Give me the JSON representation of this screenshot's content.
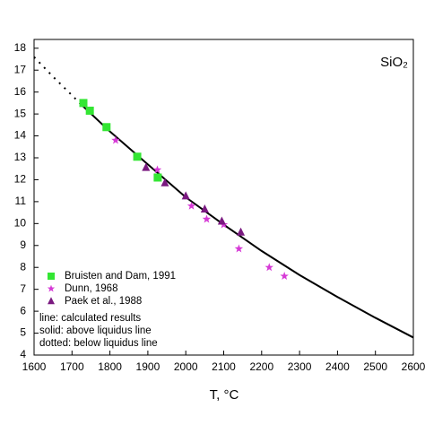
{
  "chart_data": {
    "type": "scatter",
    "x_label": "T, °C",
    "annotation_top": "SiO₂",
    "xlim": [
      1600,
      2600
    ],
    "ylim": [
      4,
      18.4
    ],
    "xticks": [
      1600,
      1700,
      1800,
      1900,
      2000,
      2100,
      2200,
      2300,
      2400,
      2500,
      2600
    ],
    "yticks": [
      4,
      5,
      6,
      7,
      8,
      9,
      10,
      11,
      12,
      13,
      14,
      15,
      16,
      17,
      18
    ],
    "legend": "lower left",
    "series": [
      {
        "name": "Bruisten and Dam, 1991",
        "color": "#33e633",
        "marker": "square",
        "x": [
          1730,
          1747,
          1791,
          1872,
          1926
        ],
        "values": [
          15.5,
          15.15,
          14.4,
          13.05,
          12.1
        ]
      },
      {
        "name": "Dunn, 1968",
        "color": "#d63ad6",
        "marker": "star",
        "x": [
          1815,
          1925,
          2015,
          2055,
          2100,
          2140,
          2220,
          2260
        ],
        "values": [
          13.8,
          12.45,
          10.8,
          10.2,
          9.95,
          8.85,
          8.0,
          7.6
        ]
      },
      {
        "name": "Paek et al., 1988",
        "color": "#7a1a80",
        "marker": "triangle",
        "x": [
          1895,
          1945,
          2000,
          2050,
          2095,
          2145
        ],
        "values": [
          12.55,
          11.85,
          11.25,
          10.65,
          10.1,
          9.6
        ]
      }
    ],
    "lines": [
      {
        "style": "dotted",
        "color": "#000000",
        "x": [
          1600,
          1650,
          1700,
          1720
        ],
        "values": [
          17.6,
          16.7,
          15.85,
          15.5
        ]
      },
      {
        "style": "solid",
        "color": "#000000",
        "x": [
          1720,
          1800,
          1900,
          2000,
          2100,
          2200,
          2300,
          2400,
          2500,
          2600
        ],
        "values": [
          15.5,
          14.2,
          12.7,
          11.2,
          9.95,
          8.75,
          7.65,
          6.65,
          5.7,
          4.8
        ]
      }
    ],
    "annotations": [
      "line: calculated results",
      "solid: above liquidus line",
      "dotted: below liquidus line"
    ]
  }
}
